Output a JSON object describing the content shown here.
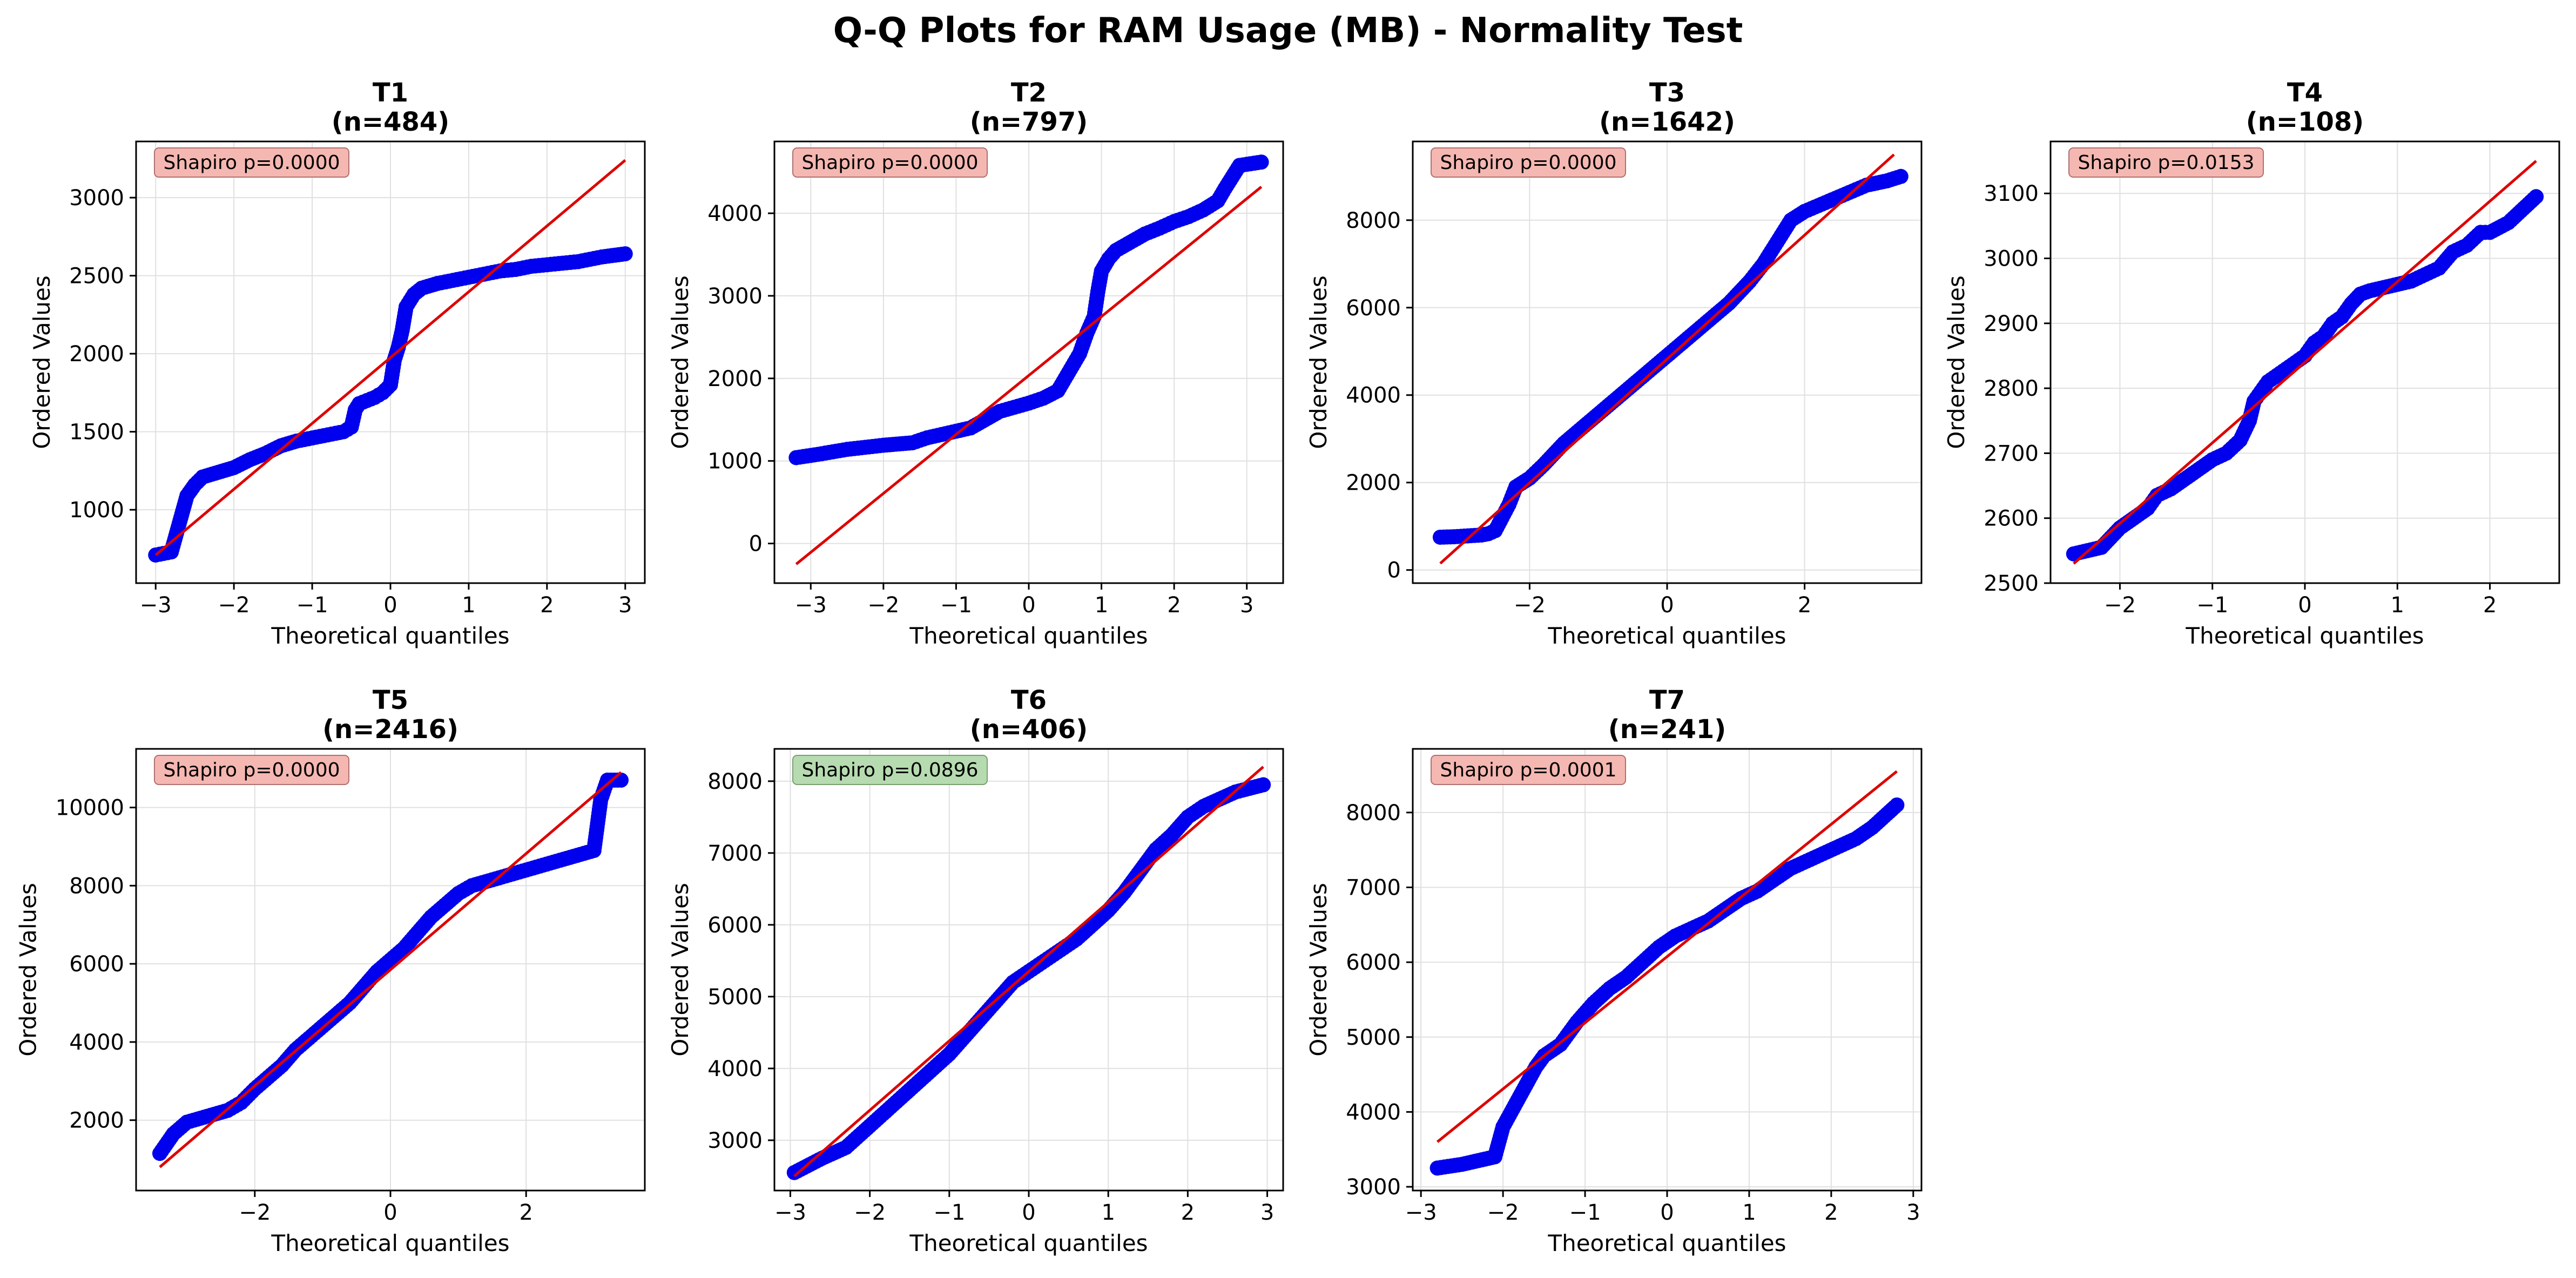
{
  "figure_title": "Q-Q Plots for RAM Usage (MB) - Normality Test",
  "colors": {
    "points": "#0000ee",
    "fit_line": "#dd0000",
    "grid": "#e0e0e0",
    "badge_reject": "#f5b7b1",
    "badge_accept": "#b7dbb0"
  },
  "chart_data": [
    {
      "type": "scatter",
      "title": "T1",
      "subtitle": "(n=484)",
      "n": 484,
      "xlabel": "Theoretical quantiles",
      "ylabel": "Ordered Values",
      "xlim": [
        -3.25,
        3.25
      ],
      "ylim": [
        530,
        3360
      ],
      "xticks": [
        -3,
        -2,
        -1,
        0,
        1,
        2,
        3
      ],
      "yticks": [
        1000,
        1500,
        2000,
        2500,
        3000
      ],
      "annotation": "Shapiro p=0.0000",
      "normal": false,
      "grid": true,
      "fit_line": [
        [
          -3,
          710
        ],
        [
          3,
          3240
        ]
      ],
      "points": [
        [
          -3.0,
          710
        ],
        [
          -2.8,
          730
        ],
        [
          -2.6,
          1090
        ],
        [
          -2.5,
          1160
        ],
        [
          -2.4,
          1210
        ],
        [
          -2.2,
          1240
        ],
        [
          -2.0,
          1270
        ],
        [
          -1.8,
          1320
        ],
        [
          -1.6,
          1360
        ],
        [
          -1.4,
          1410
        ],
        [
          -1.2,
          1440
        ],
        [
          -1.0,
          1460
        ],
        [
          -0.8,
          1480
        ],
        [
          -0.6,
          1500
        ],
        [
          -0.5,
          1530
        ],
        [
          -0.45,
          1640
        ],
        [
          -0.4,
          1680
        ],
        [
          -0.3,
          1700
        ],
        [
          -0.2,
          1720
        ],
        [
          -0.1,
          1750
        ],
        [
          0.0,
          1800
        ],
        [
          0.05,
          1960
        ],
        [
          0.1,
          2040
        ],
        [
          0.15,
          2150
        ],
        [
          0.2,
          2300
        ],
        [
          0.3,
          2380
        ],
        [
          0.4,
          2420
        ],
        [
          0.6,
          2450
        ],
        [
          0.8,
          2470
        ],
        [
          1.0,
          2490
        ],
        [
          1.2,
          2510
        ],
        [
          1.4,
          2530
        ],
        [
          1.6,
          2540
        ],
        [
          1.8,
          2560
        ],
        [
          2.0,
          2570
        ],
        [
          2.2,
          2580
        ],
        [
          2.4,
          2590
        ],
        [
          2.5,
          2600
        ],
        [
          2.7,
          2620
        ],
        [
          3.0,
          2640
        ]
      ]
    },
    {
      "type": "scatter",
      "title": "T2",
      "subtitle": "(n=797)",
      "n": 797,
      "xlabel": "Theoretical quantiles",
      "ylabel": "Ordered Values",
      "xlim": [
        -3.5,
        3.5
      ],
      "ylim": [
        -480,
        4870
      ],
      "xticks": [
        -3,
        -2,
        -1,
        0,
        1,
        2,
        3
      ],
      "yticks": [
        0,
        1000,
        2000,
        3000,
        4000
      ],
      "annotation": "Shapiro p=0.0000",
      "normal": false,
      "grid": true,
      "fit_line": [
        [
          -3.2,
          -250
        ],
        [
          3.2,
          4320
        ]
      ],
      "points": [
        [
          -3.2,
          1040
        ],
        [
          -2.9,
          1080
        ],
        [
          -2.7,
          1110
        ],
        [
          -2.5,
          1140
        ],
        [
          -2.2,
          1170
        ],
        [
          -2.0,
          1190
        ],
        [
          -1.6,
          1220
        ],
        [
          -1.4,
          1280
        ],
        [
          -1.2,
          1320
        ],
        [
          -1.0,
          1360
        ],
        [
          -0.8,
          1400
        ],
        [
          -0.6,
          1500
        ],
        [
          -0.4,
          1600
        ],
        [
          -0.2,
          1650
        ],
        [
          0.0,
          1700
        ],
        [
          0.2,
          1760
        ],
        [
          0.4,
          1850
        ],
        [
          0.5,
          2000
        ],
        [
          0.6,
          2150
        ],
        [
          0.7,
          2300
        ],
        [
          0.8,
          2550
        ],
        [
          0.9,
          2750
        ],
        [
          0.95,
          3050
        ],
        [
          1.0,
          3300
        ],
        [
          1.1,
          3450
        ],
        [
          1.2,
          3550
        ],
        [
          1.4,
          3650
        ],
        [
          1.6,
          3750
        ],
        [
          1.8,
          3820
        ],
        [
          2.0,
          3900
        ],
        [
          2.2,
          3960
        ],
        [
          2.4,
          4040
        ],
        [
          2.6,
          4150
        ],
        [
          2.7,
          4300
        ],
        [
          2.9,
          4580
        ],
        [
          3.2,
          4620
        ]
      ]
    },
    {
      "type": "scatter",
      "title": "T3",
      "subtitle": "(n=1642)",
      "n": 1642,
      "xlabel": "Theoretical quantiles",
      "ylabel": "Ordered Values",
      "xlim": [
        -3.7,
        3.7
      ],
      "ylim": [
        -300,
        9800
      ],
      "xticks": [
        -2,
        0,
        2
      ],
      "yticks": [
        0,
        2000,
        4000,
        6000,
        8000
      ],
      "annotation": "Shapiro p=0.0000",
      "normal": false,
      "grid": true,
      "fit_line": [
        [
          -3.3,
          150
        ],
        [
          3.3,
          9500
        ]
      ],
      "points": [
        [
          -3.3,
          750
        ],
        [
          -3.1,
          760
        ],
        [
          -2.9,
          780
        ],
        [
          -2.7,
          800
        ],
        [
          -2.6,
          830
        ],
        [
          -2.5,
          900
        ],
        [
          -2.4,
          1200
        ],
        [
          -2.3,
          1500
        ],
        [
          -2.2,
          1900
        ],
        [
          -2.0,
          2100
        ],
        [
          -1.8,
          2400
        ],
        [
          -1.5,
          2900
        ],
        [
          -1.2,
          3300
        ],
        [
          -0.9,
          3700
        ],
        [
          -0.6,
          4100
        ],
        [
          -0.3,
          4500
        ],
        [
          0.0,
          4900
        ],
        [
          0.3,
          5300
        ],
        [
          0.6,
          5700
        ],
        [
          0.9,
          6100
        ],
        [
          1.2,
          6600
        ],
        [
          1.4,
          7000
        ],
        [
          1.6,
          7500
        ],
        [
          1.8,
          8000
        ],
        [
          2.0,
          8200
        ],
        [
          2.3,
          8400
        ],
        [
          2.6,
          8600
        ],
        [
          2.9,
          8800
        ],
        [
          3.2,
          8900
        ],
        [
          3.4,
          9000
        ]
      ]
    },
    {
      "type": "scatter",
      "title": "T4",
      "subtitle": "(n=108)",
      "n": 108,
      "xlabel": "Theoretical quantiles",
      "ylabel": "Ordered Values",
      "xlim": [
        -2.75,
        2.75
      ],
      "ylim": [
        2500,
        3180
      ],
      "xticks": [
        -2,
        -1,
        0,
        1,
        2
      ],
      "yticks": [
        2500,
        2600,
        2700,
        2800,
        2900,
        3000,
        3100
      ],
      "annotation": "Shapiro p=0.0153",
      "normal": false,
      "grid": true,
      "fit_line": [
        [
          -2.5,
          2530
        ],
        [
          2.5,
          3150
        ]
      ],
      "points": [
        [
          -2.5,
          2545
        ],
        [
          -2.2,
          2555
        ],
        [
          -2.0,
          2585
        ],
        [
          -1.85,
          2600
        ],
        [
          -1.7,
          2615
        ],
        [
          -1.6,
          2635
        ],
        [
          -1.45,
          2645
        ],
        [
          -1.3,
          2660
        ],
        [
          -1.15,
          2675
        ],
        [
          -1.0,
          2690
        ],
        [
          -0.85,
          2700
        ],
        [
          -0.7,
          2720
        ],
        [
          -0.6,
          2750
        ],
        [
          -0.55,
          2780
        ],
        [
          -0.5,
          2790
        ],
        [
          -0.4,
          2810
        ],
        [
          -0.3,
          2820
        ],
        [
          -0.2,
          2830
        ],
        [
          -0.1,
          2840
        ],
        [
          0.0,
          2850
        ],
        [
          0.1,
          2870
        ],
        [
          0.2,
          2880
        ],
        [
          0.3,
          2900
        ],
        [
          0.4,
          2910
        ],
        [
          0.5,
          2930
        ],
        [
          0.6,
          2945
        ],
        [
          0.7,
          2950
        ],
        [
          0.85,
          2955
        ],
        [
          1.0,
          2960
        ],
        [
          1.15,
          2965
        ],
        [
          1.3,
          2975
        ],
        [
          1.45,
          2985
        ],
        [
          1.6,
          3010
        ],
        [
          1.75,
          3020
        ],
        [
          1.9,
          3040
        ],
        [
          2.0,
          3040
        ],
        [
          2.2,
          3055
        ],
        [
          2.5,
          3095
        ]
      ]
    },
    {
      "type": "scatter",
      "title": "T5",
      "subtitle": "(n=2416)",
      "n": 2416,
      "xlabel": "Theoretical quantiles",
      "ylabel": "Ordered Values",
      "xlim": [
        -3.75,
        3.75
      ],
      "ylim": [
        200,
        11500
      ],
      "xticks": [
        -2,
        0,
        2
      ],
      "yticks": [
        2000,
        4000,
        6000,
        8000,
        10000
      ],
      "annotation": "Shapiro p=0.0000",
      "normal": false,
      "grid": true,
      "fit_line": [
        [
          -3.4,
          800
        ],
        [
          3.4,
          10900
        ]
      ],
      "points": [
        [
          -3.4,
          1150
        ],
        [
          -3.2,
          1650
        ],
        [
          -3.0,
          1950
        ],
        [
          -2.8,
          2050
        ],
        [
          -2.6,
          2150
        ],
        [
          -2.4,
          2250
        ],
        [
          -2.2,
          2450
        ],
        [
          -2.0,
          2800
        ],
        [
          -1.8,
          3100
        ],
        [
          -1.6,
          3400
        ],
        [
          -1.4,
          3800
        ],
        [
          -1.2,
          4100
        ],
        [
          -1.0,
          4400
        ],
        [
          -0.8,
          4700
        ],
        [
          -0.6,
          5000
        ],
        [
          -0.4,
          5400
        ],
        [
          -0.2,
          5800
        ],
        [
          0.0,
          6100
        ],
        [
          0.2,
          6400
        ],
        [
          0.4,
          6800
        ],
        [
          0.6,
          7200
        ],
        [
          0.8,
          7500
        ],
        [
          1.0,
          7800
        ],
        [
          1.2,
          8000
        ],
        [
          1.4,
          8100
        ],
        [
          1.6,
          8200
        ],
        [
          1.8,
          8300
        ],
        [
          2.0,
          8400
        ],
        [
          2.2,
          8500
        ],
        [
          2.4,
          8600
        ],
        [
          2.6,
          8700
        ],
        [
          2.8,
          8800
        ],
        [
          3.0,
          8900
        ],
        [
          3.1,
          10200
        ],
        [
          3.2,
          10700
        ],
        [
          3.4,
          10700
        ]
      ]
    },
    {
      "type": "scatter",
      "title": "T6",
      "subtitle": "(n=406)",
      "n": 406,
      "xlabel": "Theoretical quantiles",
      "ylabel": "Ordered Values",
      "xlim": [
        -3.2,
        3.2
      ],
      "ylim": [
        2300,
        8450
      ],
      "xticks": [
        -3,
        -2,
        -1,
        0,
        1,
        2,
        3
      ],
      "yticks": [
        3000,
        4000,
        5000,
        6000,
        7000,
        8000
      ],
      "annotation": "Shapiro p=0.0896",
      "normal": true,
      "grid": true,
      "fit_line": [
        [
          -2.95,
          2500
        ],
        [
          2.95,
          8200
        ]
      ],
      "points": [
        [
          -2.95,
          2550
        ],
        [
          -2.6,
          2750
        ],
        [
          -2.3,
          2900
        ],
        [
          -2.0,
          3200
        ],
        [
          -1.8,
          3400
        ],
        [
          -1.6,
          3600
        ],
        [
          -1.4,
          3800
        ],
        [
          -1.2,
          4000
        ],
        [
          -1.0,
          4200
        ],
        [
          -0.8,
          4450
        ],
        [
          -0.6,
          4700
        ],
        [
          -0.4,
          4950
        ],
        [
          -0.2,
          5200
        ],
        [
          0.0,
          5350
        ],
        [
          0.2,
          5500
        ],
        [
          0.4,
          5650
        ],
        [
          0.6,
          5800
        ],
        [
          0.8,
          6000
        ],
        [
          1.0,
          6200
        ],
        [
          1.2,
          6450
        ],
        [
          1.4,
          6750
        ],
        [
          1.6,
          7050
        ],
        [
          1.8,
          7250
        ],
        [
          2.0,
          7500
        ],
        [
          2.2,
          7650
        ],
        [
          2.4,
          7750
        ],
        [
          2.6,
          7850
        ],
        [
          2.95,
          7950
        ]
      ]
    },
    {
      "type": "scatter",
      "title": "T7",
      "subtitle": "(n=241)",
      "n": 241,
      "xlabel": "Theoretical quantiles",
      "ylabel": "Ordered Values",
      "xlim": [
        -3.1,
        3.1
      ],
      "ylim": [
        2950,
        8850
      ],
      "xticks": [
        -3,
        -2,
        -1,
        0,
        1,
        2,
        3
      ],
      "yticks": [
        3000,
        4000,
        5000,
        6000,
        7000,
        8000
      ],
      "annotation": "Shapiro p=0.0001",
      "normal": false,
      "grid": true,
      "fit_line": [
        [
          -2.8,
          3600
        ],
        [
          2.8,
          8550
        ]
      ],
      "points": [
        [
          -2.8,
          3250
        ],
        [
          -2.5,
          3300
        ],
        [
          -2.3,
          3350
        ],
        [
          -2.1,
          3400
        ],
        [
          -2.0,
          3800
        ],
        [
          -1.9,
          4000
        ],
        [
          -1.8,
          4200
        ],
        [
          -1.7,
          4400
        ],
        [
          -1.6,
          4600
        ],
        [
          -1.5,
          4750
        ],
        [
          -1.3,
          4900
        ],
        [
          -1.1,
          5200
        ],
        [
          -0.9,
          5450
        ],
        [
          -0.7,
          5650
        ],
        [
          -0.5,
          5800
        ],
        [
          -0.3,
          6000
        ],
        [
          -0.1,
          6200
        ],
        [
          0.1,
          6350
        ],
        [
          0.3,
          6450
        ],
        [
          0.5,
          6550
        ],
        [
          0.7,
          6700
        ],
        [
          0.9,
          6850
        ],
        [
          1.1,
          6950
        ],
        [
          1.3,
          7100
        ],
        [
          1.5,
          7250
        ],
        [
          1.7,
          7350
        ],
        [
          1.9,
          7450
        ],
        [
          2.1,
          7550
        ],
        [
          2.3,
          7650
        ],
        [
          2.5,
          7800
        ],
        [
          2.8,
          8100
        ]
      ]
    }
  ]
}
